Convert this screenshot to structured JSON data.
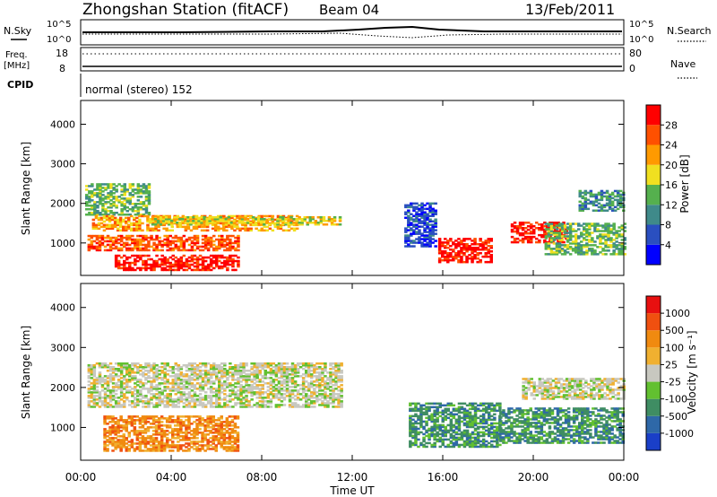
{
  "header": {
    "station": "Zhongshan Station (fitACF)",
    "beam": "Beam 04",
    "date": "13/Feb/2011"
  },
  "noise_panel": {
    "left_label": "N.Sky",
    "right_label": "N.Search",
    "top_tick": "10^5",
    "bottom_tick": "10^0"
  },
  "freq_panel": {
    "left_label_1": "Freq.",
    "left_label_2": "[MHz]",
    "left_tick_top": "18",
    "left_tick_bottom": "8",
    "right_label": "Nave",
    "right_tick_top": "80",
    "right_tick_bottom": "0"
  },
  "cpid_panel": {
    "label": "CPID",
    "value": "normal (stereo) 152"
  },
  "chart_data": [
    {
      "type": "heatmap",
      "quantity": "Power",
      "ylabel": "Slant Range [km]",
      "ylim": [
        180,
        4600
      ],
      "yticks": [
        "1000",
        "2000",
        "3000",
        "4000"
      ],
      "colorbar": {
        "label": "Power [dB]",
        "ticks": [
          "4",
          "8",
          "12",
          "16",
          "20",
          "24",
          "28"
        ],
        "colors": [
          "#0000ff",
          "#2a4fc0",
          "#3f8a8a",
          "#55b04e",
          "#f0e020",
          "#ff9a00",
          "#ff5000",
          "#ff0000"
        ]
      },
      "bands": [
        {
          "t0": 0.2,
          "t1": 3.0,
          "r0": 1700,
          "r1": 2500,
          "level": 3
        },
        {
          "t0": 0.5,
          "t1": 9.5,
          "r0": 1300,
          "r1": 1700,
          "level": 5
        },
        {
          "t0": 0.3,
          "t1": 7.0,
          "r0": 800,
          "r1": 1200,
          "level": 6
        },
        {
          "t0": 1.5,
          "t1": 7.0,
          "r0": 300,
          "r1": 700,
          "level": 7
        },
        {
          "t0": 3.0,
          "t1": 11.5,
          "r0": 1450,
          "r1": 1650,
          "level": 4
        },
        {
          "t0": 14.3,
          "t1": 15.7,
          "r0": 900,
          "r1": 2000,
          "level": 1
        },
        {
          "t0": 15.8,
          "t1": 18.2,
          "r0": 500,
          "r1": 1100,
          "level": 7
        },
        {
          "t0": 19.0,
          "t1": 21.5,
          "r0": 1000,
          "r1": 1500,
          "level": 7
        },
        {
          "t0": 20.5,
          "t1": 24.0,
          "r0": 700,
          "r1": 1500,
          "level": 3
        },
        {
          "t0": 22.0,
          "t1": 24.0,
          "r0": 1800,
          "r1": 2300,
          "level": 2
        }
      ]
    },
    {
      "type": "heatmap",
      "quantity": "Velocity",
      "xlabel": "Time UT",
      "ylabel": "Slant Range [km]",
      "ylim": [
        180,
        4600
      ],
      "yticks": [
        "1000",
        "2000",
        "3000",
        "4000"
      ],
      "xticks": [
        "00:00",
        "04:00",
        "08:00",
        "12:00",
        "16:00",
        "20:00",
        "00:00"
      ],
      "colorbar": {
        "label": "Velocity [m s⁻¹]",
        "ticks": [
          "1000",
          "500",
          "100",
          "25",
          "-25",
          "-100",
          "-500",
          "-1000"
        ],
        "colors": [
          "#1a3fc8",
          "#2e68a8",
          "#3f8d63",
          "#62c030",
          "#c8c8c0",
          "#f0b030",
          "#f08a10",
          "#f05010",
          "#e81010"
        ]
      },
      "bands": [
        {
          "t0": 0.3,
          "t1": 11.5,
          "r0": 1500,
          "r1": 2600,
          "level": 4
        },
        {
          "t0": 1.0,
          "t1": 7.0,
          "r0": 400,
          "r1": 1300,
          "level": 6
        },
        {
          "t0": 14.5,
          "t1": 18.5,
          "r0": 500,
          "r1": 1600,
          "level": 2
        },
        {
          "t0": 18.5,
          "t1": 24.0,
          "r0": 600,
          "r1": 1500,
          "level": 2
        },
        {
          "t0": 19.5,
          "t1": 24.0,
          "r0": 1700,
          "r1": 2200,
          "level": 4
        }
      ]
    }
  ]
}
